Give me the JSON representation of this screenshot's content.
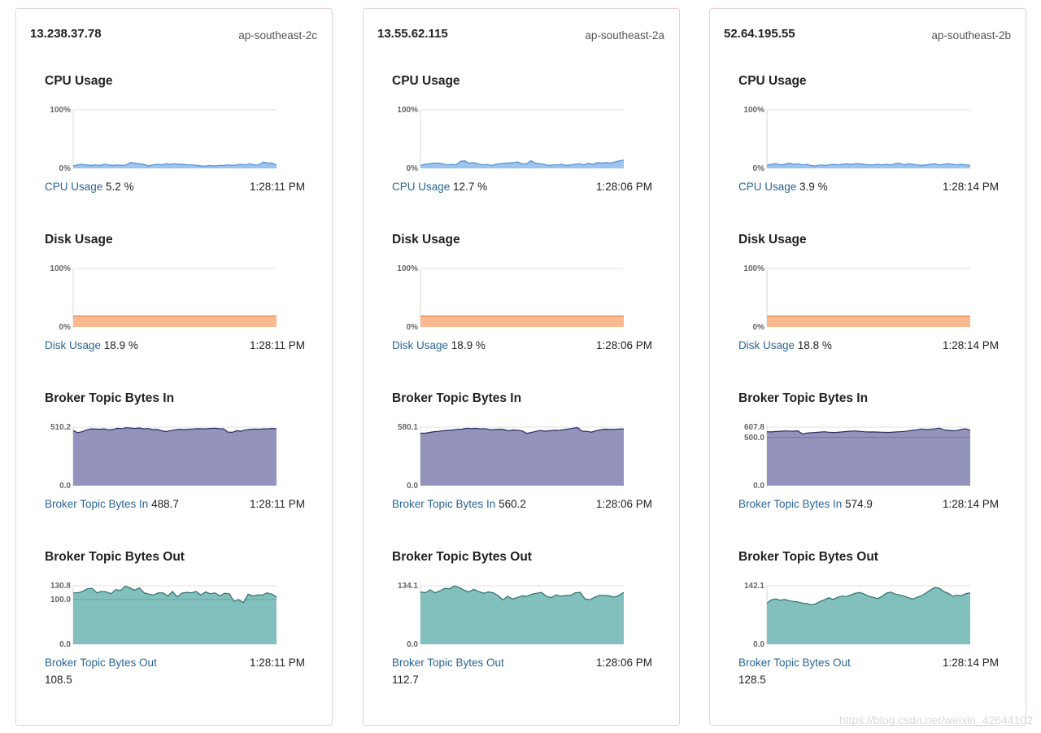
{
  "colors": {
    "link": "#2a6496",
    "cpu_fill": "#9ec3ec",
    "cpu_line": "#4a8fd6",
    "disk_fill": "#f9b991",
    "disk_line": "#e38a51",
    "in_fill": "#9393bd",
    "in_line": "#2c2c5e",
    "out_fill": "#82c0be",
    "out_line": "#2e6f6e"
  },
  "brokers": [
    {
      "ip": "13.238.37.78",
      "zone": "ap-southeast-2c",
      "metrics": {
        "cpu": {
          "title": "CPU Usage",
          "label": "CPU Usage",
          "value": "5.2 %",
          "time": "1:28:11 PM",
          "y_top": "100%",
          "y_bottom": "0%",
          "ref": null,
          "chart_data": {
            "type": "area",
            "ylim": [
              0,
              100
            ],
            "values": [
              4,
              6,
              7,
              6,
              5,
              6,
              5,
              7,
              6,
              5,
              6,
              5,
              6,
              10,
              9,
              8,
              7,
              4,
              6,
              7,
              6,
              8,
              7,
              8,
              7,
              7,
              6,
              6,
              5,
              4,
              4,
              5,
              4,
              5,
              5,
              6,
              5,
              6,
              7,
              6,
              8,
              6,
              6,
              11,
              9,
              9,
              6
            ]
          }
        },
        "disk": {
          "title": "Disk Usage",
          "label": "Disk Usage",
          "value": "18.9 %",
          "time": "1:28:11 PM",
          "y_top": "100%",
          "y_bottom": "0%",
          "ref": null,
          "chart_data": {
            "type": "area",
            "ylim": [
              0,
              100
            ],
            "values": [
              18.9,
              18.9
            ]
          }
        },
        "bytes_in": {
          "title": "Broker Topic Bytes In",
          "label": "Broker Topic Bytes In",
          "value": "488.7",
          "time": "1:28:11 PM",
          "y_top": "510.2",
          "y_bottom": "0.0",
          "ref": null,
          "chart_data": {
            "type": "area",
            "ylim": [
              0,
              510.2
            ],
            "values": [
              480,
              462,
              470,
              485,
              495,
              493,
              492,
              495,
              487,
              490,
              500,
              497,
              505,
              502,
              499,
              503,
              495,
              498,
              489,
              490,
              479,
              471,
              480,
              487,
              492,
              488,
              492,
              494,
              497,
              496,
              495,
              499,
              501,
              497,
              496,
              467,
              465,
              479,
              475,
              487,
              490,
              493,
              492,
              495,
              495,
              499,
              496
            ]
          }
        },
        "bytes_out": {
          "title": "Broker Topic Bytes Out",
          "label": "Broker Topic Bytes Out",
          "value": "108.5",
          "time": "1:28:11 PM",
          "y_top": "130.8",
          "y_bottom": "0.0",
          "ref": "100.0",
          "chart_data": {
            "type": "area",
            "ylim": [
              0,
              130.8
            ],
            "values": [
              115,
              115,
              118,
              124,
              125,
              115,
              118,
              117,
              113,
              122,
              120,
              130,
              126,
              121,
              126,
              115,
              112,
              110,
              115,
              115,
              108,
              118,
              106,
              114,
              116,
              115,
              118,
              110,
              117,
              113,
              115,
              108,
              114,
              113,
              96,
              100,
              93,
              112,
              108,
              110,
              110,
              115,
              112,
              106
            ]
          }
        }
      }
    },
    {
      "ip": "13.55.62.115",
      "zone": "ap-southeast-2a",
      "metrics": {
        "cpu": {
          "title": "CPU Usage",
          "label": "CPU Usage",
          "value": "12.7 %",
          "time": "1:28:06 PM",
          "y_top": "100%",
          "y_bottom": "0%",
          "ref": null,
          "chart_data": {
            "type": "area",
            "ylim": [
              0,
              100
            ],
            "values": [
              5,
              7,
              8,
              9,
              9,
              8,
              6,
              7,
              6,
              12,
              13,
              9,
              10,
              8,
              6,
              7,
              5,
              7,
              8,
              9,
              9,
              10,
              11,
              8,
              8,
              13,
              9,
              8,
              7,
              5,
              6,
              6,
              7,
              5,
              6,
              7,
              8,
              6,
              9,
              7,
              10,
              9,
              10,
              9,
              11,
              13,
              14
            ]
          }
        },
        "disk": {
          "title": "Disk Usage",
          "label": "Disk Usage",
          "value": "18.9 %",
          "time": "1:28:06 PM",
          "y_top": "100%",
          "y_bottom": "0%",
          "ref": null,
          "chart_data": {
            "type": "area",
            "ylim": [
              0,
              100
            ],
            "values": [
              18.9,
              18.9
            ]
          }
        },
        "bytes_in": {
          "title": "Broker Topic Bytes In",
          "label": "Broker Topic Bytes In",
          "value": "560.2",
          "time": "1:28:06 PM",
          "y_top": "580.1",
          "y_bottom": "0.0",
          "ref": null,
          "chart_data": {
            "type": "area",
            "ylim": [
              0,
              580.1
            ],
            "values": [
              520,
              520,
              528,
              535,
              538,
              545,
              548,
              552,
              558,
              560,
              570,
              565,
              568,
              563,
              566,
              555,
              556,
              559,
              557,
              544,
              552,
              550,
              542,
              518,
              528,
              537,
              547,
              540,
              545,
              549,
              547,
              555,
              562,
              570,
              575,
              540,
              538,
              530,
              545,
              553,
              560,
              557,
              558,
              561,
              562
            ]
          }
        },
        "bytes_out": {
          "title": "Broker Topic Bytes Out",
          "label": "Broker Topic Bytes Out",
          "value": "112.7",
          "time": "1:28:06 PM",
          "y_top": "134.1",
          "y_bottom": "0.0",
          "ref": null,
          "chart_data": {
            "type": "area",
            "ylim": [
              0,
              134.1
            ],
            "values": [
              120,
              118,
              125,
              118,
              122,
              128,
              127,
              134,
              130,
              124,
              120,
              126,
              121,
              117,
              120,
              118,
              112,
              102,
              110,
              104,
              107,
              111,
              110,
              115,
              117,
              119,
              110,
              107,
              113,
              110,
              112,
              112,
              118,
              119,
              104,
              102,
              108,
              112,
              112,
              111,
              108,
              112,
              119
            ]
          }
        }
      }
    },
    {
      "ip": "52.64.195.55",
      "zone": "ap-southeast-2b",
      "metrics": {
        "cpu": {
          "title": "CPU Usage",
          "label": "CPU Usage",
          "value": "3.9 %",
          "time": "1:28:14 PM",
          "y_top": "100%",
          "y_bottom": "0%",
          "ref": null,
          "chart_data": {
            "type": "area",
            "ylim": [
              0,
              100
            ],
            "values": [
              5,
              7,
              8,
              6,
              7,
              9,
              7,
              8,
              6,
              7,
              5,
              4,
              6,
              5,
              6,
              7,
              6,
              7,
              8,
              7,
              8,
              8,
              7,
              6,
              6,
              7,
              6,
              7,
              6,
              8,
              9,
              6,
              8,
              7,
              6,
              5,
              6,
              7,
              8,
              6,
              7,
              8,
              7,
              6,
              7,
              6,
              5
            ]
          }
        },
        "disk": {
          "title": "Disk Usage",
          "label": "Disk Usage",
          "value": "18.8 %",
          "time": "1:28:14 PM",
          "y_top": "100%",
          "y_bottom": "0%",
          "ref": null,
          "chart_data": {
            "type": "area",
            "ylim": [
              0,
              100
            ],
            "values": [
              18.8,
              18.8
            ]
          }
        },
        "bytes_in": {
          "title": "Broker Topic Bytes In",
          "label": "Broker Topic Bytes In",
          "value": "574.9",
          "time": "1:28:14 PM",
          "y_top": "607.8",
          "y_bottom": "0.0",
          "ref": "500.0",
          "chart_data": {
            "type": "area",
            "ylim": [
              0,
              607.8
            ],
            "values": [
              560,
              558,
              562,
              565,
              568,
              567,
              566,
              569,
              538,
              545,
              550,
              552,
              556,
              560,
              555,
              552,
              554,
              558,
              562,
              566,
              568,
              564,
              560,
              557,
              558,
              556,
              555,
              553,
              554,
              557,
              560,
              563,
              568,
              575,
              580,
              588,
              582,
              585,
              590,
              598,
              580,
              575,
              570,
              572,
              585,
              590,
              575
            ]
          }
        },
        "bytes_out": {
          "title": "Broker Topic Bytes Out",
          "label": "Broker Topic Bytes Out",
          "value": "128.5",
          "time": "1:28:14 PM",
          "y_top": "142.1",
          "y_bottom": "0.0",
          "ref": null,
          "chart_data": {
            "type": "area",
            "ylim": [
              0,
              142.1
            ],
            "values": [
              100,
              108,
              110,
              107,
              109,
              106,
              104,
              103,
              100,
              99,
              96,
              98,
              104,
              108,
              113,
              109,
              114,
              117,
              116,
              120,
              124,
              126,
              122,
              117,
              114,
              111,
              116,
              124,
              127,
              122,
              120,
              117,
              113,
              110,
              114,
              118,
              125,
              132,
              138,
              136,
              128,
              124,
              117,
              119,
              118,
              123,
              125
            ]
          }
        }
      }
    }
  ],
  "watermark": "https://blog.csdn.net/weixin_42644102"
}
